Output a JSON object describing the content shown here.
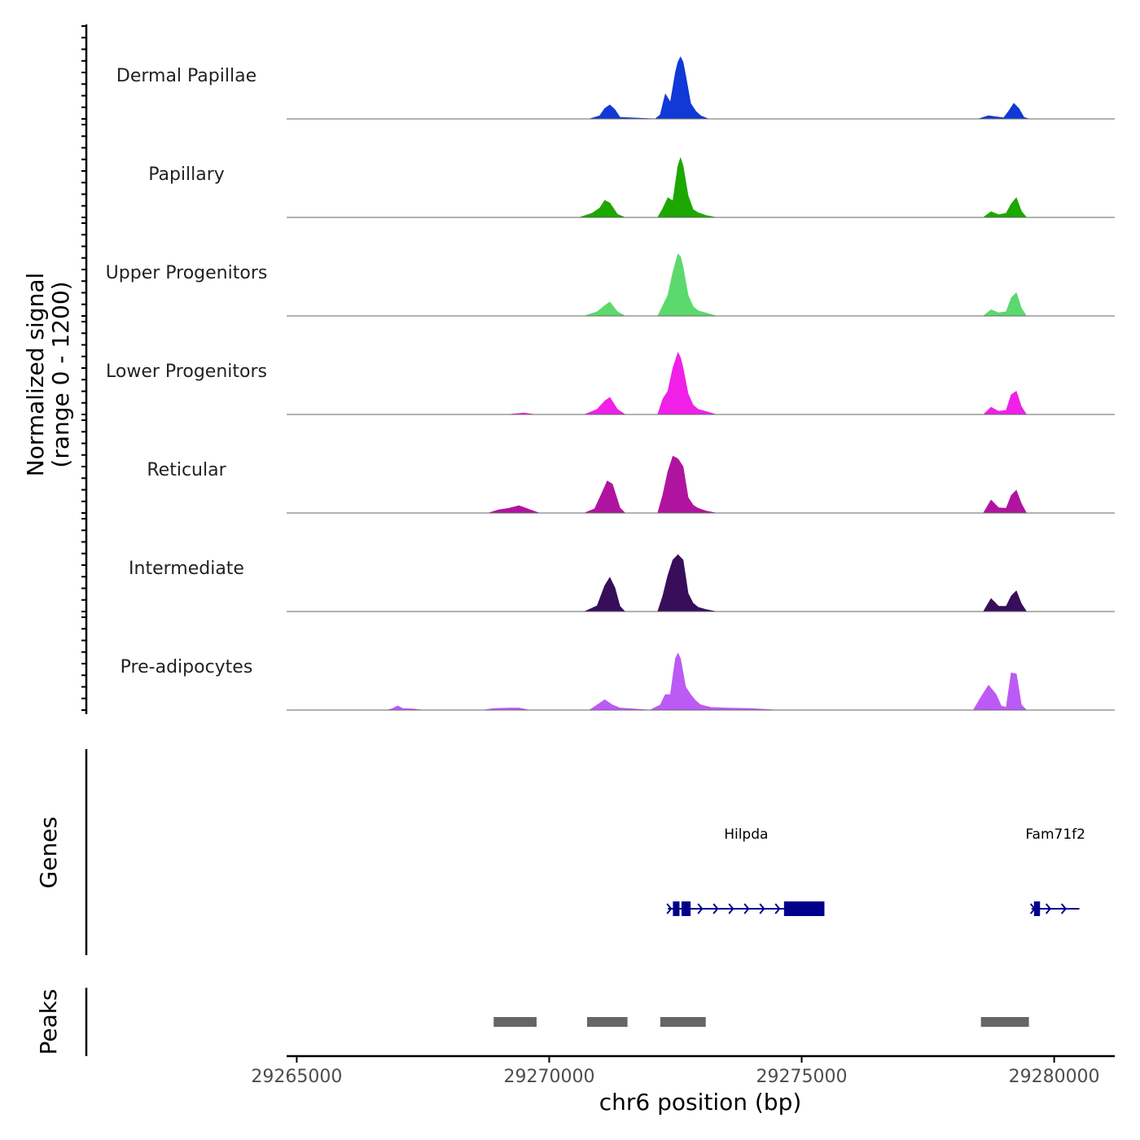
{
  "chart_data": {
    "type": "area",
    "title": "",
    "ylabel": "Normalized signal",
    "ylabel_range": "(range 0 - 1200)",
    "xlabel": "chr6 position (bp)",
    "xlim": [
      29264800,
      29281200
    ],
    "ylim": [
      0,
      1200
    ],
    "x_ticks": [
      29265000,
      29270000,
      29275000,
      29280000
    ],
    "x_tick_labels": [
      "29265000",
      "29270000",
      "29275000",
      "29280000"
    ],
    "series": [
      {
        "name": "Dermal Papillae",
        "color": "#1039d6",
        "points": [
          [
            29270800,
            0
          ],
          [
            29271000,
            60
          ],
          [
            29271100,
            200
          ],
          [
            29271200,
            270
          ],
          [
            29271300,
            180
          ],
          [
            29271400,
            30
          ],
          [
            29272100,
            0
          ],
          [
            29272200,
            80
          ],
          [
            29272300,
            480
          ],
          [
            29272400,
            320
          ],
          [
            29272500,
            900
          ],
          [
            29272550,
            1100
          ],
          [
            29272600,
            1200
          ],
          [
            29272650,
            1100
          ],
          [
            29272700,
            850
          ],
          [
            29272800,
            300
          ],
          [
            29272900,
            150
          ],
          [
            29273000,
            60
          ],
          [
            29273150,
            0
          ],
          [
            29278500,
            0
          ],
          [
            29278700,
            60
          ],
          [
            29278850,
            40
          ],
          [
            29279000,
            20
          ],
          [
            29279100,
            150
          ],
          [
            29279200,
            300
          ],
          [
            29279300,
            200
          ],
          [
            29279400,
            30
          ],
          [
            29279500,
            0
          ]
        ]
      },
      {
        "name": "Papillary",
        "color": "#1ca800",
        "points": [
          [
            29270600,
            0
          ],
          [
            29270850,
            80
          ],
          [
            29271000,
            180
          ],
          [
            29271100,
            330
          ],
          [
            29271200,
            280
          ],
          [
            29271350,
            60
          ],
          [
            29271500,
            0
          ],
          [
            29272150,
            0
          ],
          [
            29272250,
            170
          ],
          [
            29272350,
            380
          ],
          [
            29272450,
            320
          ],
          [
            29272550,
            1000
          ],
          [
            29272600,
            1150
          ],
          [
            29272650,
            1000
          ],
          [
            29272750,
            420
          ],
          [
            29272850,
            150
          ],
          [
            29272950,
            90
          ],
          [
            29273100,
            40
          ],
          [
            29273300,
            0
          ],
          [
            29278600,
            0
          ],
          [
            29278750,
            110
          ],
          [
            29278900,
            50
          ],
          [
            29279050,
            80
          ],
          [
            29279150,
            260
          ],
          [
            29279250,
            380
          ],
          [
            29279350,
            120
          ],
          [
            29279450,
            0
          ]
        ]
      },
      {
        "name": "Upper Progenitors",
        "color": "#5cd96d",
        "points": [
          [
            29270700,
            0
          ],
          [
            29270950,
            80
          ],
          [
            29271100,
            200
          ],
          [
            29271200,
            270
          ],
          [
            29271350,
            80
          ],
          [
            29271500,
            0
          ],
          [
            29272150,
            0
          ],
          [
            29272250,
            200
          ],
          [
            29272350,
            400
          ],
          [
            29272450,
            850
          ],
          [
            29272550,
            1200
          ],
          [
            29272600,
            1150
          ],
          [
            29272650,
            950
          ],
          [
            29272750,
            400
          ],
          [
            29272850,
            180
          ],
          [
            29272950,
            100
          ],
          [
            29273100,
            60
          ],
          [
            29273300,
            0
          ],
          [
            29278600,
            0
          ],
          [
            29278750,
            120
          ],
          [
            29278900,
            60
          ],
          [
            29279050,
            80
          ],
          [
            29279150,
            350
          ],
          [
            29279250,
            450
          ],
          [
            29279350,
            150
          ],
          [
            29279450,
            0
          ]
        ]
      },
      {
        "name": "Lower Progenitors",
        "color": "#f020e8",
        "points": [
          [
            29269200,
            0
          ],
          [
            29269500,
            30
          ],
          [
            29269700,
            0
          ],
          [
            29270700,
            0
          ],
          [
            29270950,
            100
          ],
          [
            29271100,
            260
          ],
          [
            29271200,
            330
          ],
          [
            29271350,
            100
          ],
          [
            29271500,
            0
          ],
          [
            29272150,
            0
          ],
          [
            29272250,
            300
          ],
          [
            29272350,
            450
          ],
          [
            29272450,
            900
          ],
          [
            29272550,
            1200
          ],
          [
            29272600,
            1100
          ],
          [
            29272650,
            900
          ],
          [
            29272750,
            400
          ],
          [
            29272850,
            180
          ],
          [
            29272950,
            100
          ],
          [
            29273100,
            60
          ],
          [
            29273300,
            0
          ],
          [
            29278600,
            0
          ],
          [
            29278750,
            140
          ],
          [
            29278900,
            60
          ],
          [
            29279050,
            80
          ],
          [
            29279150,
            380
          ],
          [
            29279250,
            450
          ],
          [
            29279350,
            150
          ],
          [
            29279450,
            0
          ]
        ]
      },
      {
        "name": "Reticular",
        "color": "#b0149f",
        "points": [
          [
            29268800,
            0
          ],
          [
            29269000,
            60
          ],
          [
            29269200,
            90
          ],
          [
            29269400,
            140
          ],
          [
            29269600,
            70
          ],
          [
            29269800,
            0
          ],
          [
            29270700,
            0
          ],
          [
            29270900,
            80
          ],
          [
            29271050,
            400
          ],
          [
            29271150,
            620
          ],
          [
            29271250,
            560
          ],
          [
            29271400,
            100
          ],
          [
            29271500,
            0
          ],
          [
            29272150,
            0
          ],
          [
            29272250,
            350
          ],
          [
            29272350,
            800
          ],
          [
            29272450,
            1100
          ],
          [
            29272550,
            1050
          ],
          [
            29272650,
            900
          ],
          [
            29272750,
            300
          ],
          [
            29272850,
            150
          ],
          [
            29272950,
            90
          ],
          [
            29273100,
            40
          ],
          [
            29273300,
            0
          ],
          [
            29278600,
            0
          ],
          [
            29278750,
            250
          ],
          [
            29278900,
            100
          ],
          [
            29279050,
            90
          ],
          [
            29279150,
            340
          ],
          [
            29279250,
            440
          ],
          [
            29279350,
            180
          ],
          [
            29279450,
            0
          ]
        ]
      },
      {
        "name": "Intermediate",
        "color": "#380d5a",
        "points": [
          [
            29270700,
            0
          ],
          [
            29270950,
            110
          ],
          [
            29271100,
            500
          ],
          [
            29271200,
            660
          ],
          [
            29271300,
            460
          ],
          [
            29271400,
            100
          ],
          [
            29271500,
            0
          ],
          [
            29272150,
            0
          ],
          [
            29272250,
            300
          ],
          [
            29272350,
            700
          ],
          [
            29272450,
            1000
          ],
          [
            29272550,
            1100
          ],
          [
            29272650,
            1000
          ],
          [
            29272750,
            350
          ],
          [
            29272850,
            160
          ],
          [
            29272950,
            80
          ],
          [
            29273100,
            40
          ],
          [
            29273300,
            0
          ],
          [
            29278600,
            0
          ],
          [
            29278750,
            250
          ],
          [
            29278900,
            100
          ],
          [
            29279050,
            100
          ],
          [
            29279150,
            300
          ],
          [
            29279250,
            400
          ],
          [
            29279350,
            150
          ],
          [
            29279450,
            0
          ]
        ]
      },
      {
        "name": "Pre-adipocytes",
        "color": "#bc5af5",
        "points": [
          [
            29266800,
            0
          ],
          [
            29266900,
            30
          ],
          [
            29267000,
            80
          ],
          [
            29267100,
            30
          ],
          [
            29267300,
            20
          ],
          [
            29267500,
            0
          ],
          [
            29268700,
            0
          ],
          [
            29268900,
            30
          ],
          [
            29269200,
            40
          ],
          [
            29269400,
            40
          ],
          [
            29269600,
            0
          ],
          [
            29270800,
            0
          ],
          [
            29270950,
            100
          ],
          [
            29271100,
            200
          ],
          [
            29271250,
            100
          ],
          [
            29271400,
            40
          ],
          [
            29272000,
            0
          ],
          [
            29272200,
            100
          ],
          [
            29272300,
            300
          ],
          [
            29272400,
            300
          ],
          [
            29272500,
            1000
          ],
          [
            29272550,
            1100
          ],
          [
            29272600,
            1000
          ],
          [
            29272700,
            450
          ],
          [
            29272800,
            300
          ],
          [
            29272900,
            180
          ],
          [
            29273000,
            100
          ],
          [
            29273200,
            50
          ],
          [
            29273500,
            40
          ],
          [
            29274000,
            30
          ],
          [
            29274500,
            0
          ],
          [
            29278400,
            0
          ],
          [
            29278550,
            250
          ],
          [
            29278700,
            480
          ],
          [
            29278850,
            300
          ],
          [
            29278950,
            80
          ],
          [
            29279050,
            50
          ],
          [
            29279150,
            720
          ],
          [
            29279250,
            700
          ],
          [
            29279350,
            100
          ],
          [
            29279450,
            0
          ]
        ]
      }
    ],
    "genes_label": "Genes",
    "genes": [
      {
        "name": "Hilpda",
        "start": 29272350,
        "end": 29275450,
        "strand": "+",
        "exons": [
          [
            29272450,
            29272580
          ],
          [
            29272620,
            29272800
          ],
          [
            29274650,
            29275450
          ]
        ]
      },
      {
        "name": "Fam71f2",
        "start": 29279550,
        "end": 29280500,
        "strand": "+",
        "exons": [
          [
            29279600,
            29279720
          ]
        ]
      }
    ],
    "peaks_label": "Peaks",
    "peaks": [
      [
        29268900,
        29269750
      ],
      [
        29270750,
        29271550
      ],
      [
        29272200,
        29273100
      ],
      [
        29278550,
        29279500
      ]
    ],
    "colors": {
      "gene": "#00008b",
      "peak": "#666666",
      "baseline": "#666666",
      "axis": "#000000"
    }
  }
}
